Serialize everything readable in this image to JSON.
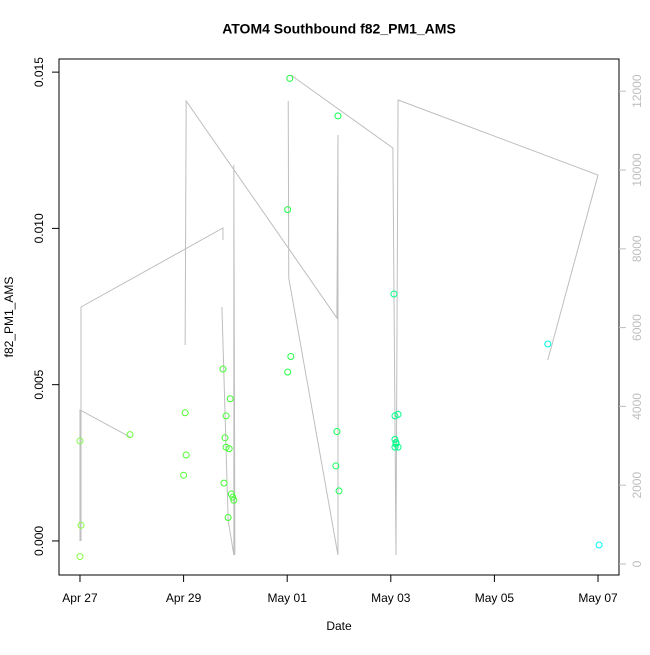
{
  "chart_data": {
    "type": "scatter",
    "title": "ATOM4 Southbound f82_PM1_AMS",
    "xlabel": "Date",
    "ylabel": "f82_PM1_AMS",
    "xlim": [
      -0.405,
      10.405
    ],
    "xticks": [
      {
        "value": 0,
        "label": "Apr 27"
      },
      {
        "value": 2,
        "label": "Apr 29"
      },
      {
        "value": 4,
        "label": "May 01"
      },
      {
        "value": 6,
        "label": "May 03"
      },
      {
        "value": 8,
        "label": "May 05"
      },
      {
        "value": 10,
        "label": "May 07"
      }
    ],
    "ylim": [
      -0.00109,
      0.01542
    ],
    "yticks": [
      {
        "value": 0,
        "label": "0.000"
      },
      {
        "value": 0.005,
        "label": "0.005"
      },
      {
        "value": 0.01,
        "label": "0.010"
      },
      {
        "value": 0.015,
        "label": "0.015"
      }
    ],
    "y2lim": [
      -279,
      12817
    ],
    "y2ticks": [
      0,
      2000,
      4000,
      6000,
      8000,
      10000,
      12000
    ],
    "y2color": "#bebebe",
    "series": [
      {
        "type": "scatter",
        "x": [
          0,
          0.02,
          0,
          0.965,
          2.03,
          2.05,
          2.0,
          2.76,
          2.8,
          2.82,
          2.78,
          2.82,
          2.88,
          2.9,
          2.92,
          2.95,
          2.97,
          2.86,
          4.05,
          4.01,
          4.07,
          4.01,
          4.98,
          4.96,
          4.94,
          5.0,
          6.06,
          6.08,
          6.14,
          6.08,
          6.1,
          6.1,
          6.08,
          6.14,
          9.03,
          10.02
        ],
        "values": [
          0.0032,
          0.0005,
          -0.0005,
          0.0034,
          0.0041,
          0.00275,
          0.0021,
          0.0055,
          0.0033,
          0.004,
          0.00185,
          0.003,
          0.00295,
          0.00455,
          0.0015,
          0.0014,
          0.0013,
          0.00075,
          0.0148,
          0.0106,
          0.0059,
          0.0054,
          0.0136,
          0.0035,
          0.0024,
          0.0016,
          0.0079,
          0.004,
          0.00405,
          0.00325,
          0.00315,
          0.0031,
          0.003,
          0.003,
          0.0063,
          -0.00013
        ],
        "colors": [
          "#80ff40",
          "#80ff40",
          "#80ff40",
          "#66ff33",
          "#55ff33",
          "#55ff33",
          "#55ff33",
          "#44ff33",
          "#44ff33",
          "#44ff33",
          "#44ff33",
          "#44ff33",
          "#44ff33",
          "#44ff33",
          "#44ff33",
          "#44ff33",
          "#44ff33",
          "#44ff33",
          "#22ff44",
          "#22ff44",
          "#22ff44",
          "#22ff44",
          "#11ff55",
          "#11ff55",
          "#11ff55",
          "#11ff55",
          "#00ff88",
          "#00ff88",
          "#00ff88",
          "#00ff88",
          "#00ff88",
          "#00ff88",
          "#00ff88",
          "#00ff88",
          "#00ffdd",
          "#00ffff"
        ]
      },
      {
        "type": "line",
        "axis": "y2",
        "color": "#bebebe",
        "x": [
          0,
          0,
          0.965,
          null,
          0.02,
          0.02,
          2.76,
          2.76,
          null,
          2.03,
          2.05,
          4.96,
          4.98,
          4.98,
          null,
          2.74,
          2.86,
          2.97,
          2.97,
          2.99,
          null,
          4.02,
          4.03,
          4.98,
          null,
          4.07,
          6.04,
          6.1,
          6.14,
          10.0,
          9.03
        ],
        "values": [
          584,
          3909,
          3223,
          null,
          584,
          6523,
          8528,
          8223,
          null,
          5558,
          11751,
          6243,
          10888,
          228,
          null,
          6523,
          1117,
          228,
          10127,
          228,
          null,
          11751,
          7259,
          228,
          null,
          12411,
          10558,
          228,
          11776,
          9873,
          5178
        ]
      }
    ]
  }
}
